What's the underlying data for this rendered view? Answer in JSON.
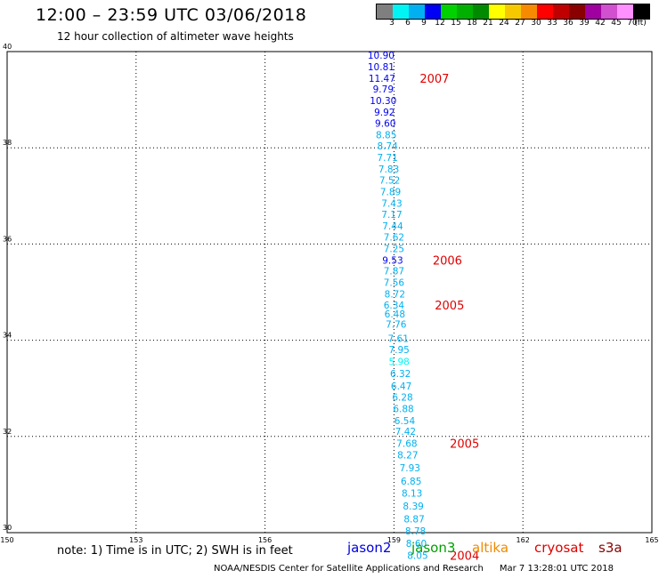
{
  "header": {
    "title": "12:00 – 23:59 UTC 03/06/2018",
    "subtitle": "12 hour collection of altimeter wave heights"
  },
  "colorbar": {
    "colors": [
      "#7f7f7f",
      "#00f4f4",
      "#00b0f0",
      "#0000f4",
      "#00d200",
      "#00b000",
      "#008a00",
      "#ffff00",
      "#f6c800",
      "#f68a00",
      "#ff0000",
      "#c00000",
      "#8a0000",
      "#a000a0",
      "#d050d0",
      "#ff90ff",
      "#000000"
    ],
    "labels": [
      "3",
      "6",
      "9",
      "12",
      "15",
      "18",
      "21",
      "24",
      "27",
      "30",
      "33",
      "36",
      "39",
      "42",
      "45",
      "70",
      "(ft)"
    ]
  },
  "chart_data": {
    "type": "scatter",
    "xlim": [
      150,
      165
    ],
    "ylim": [
      30,
      40
    ],
    "x_ticks": [
      150,
      153,
      156,
      159,
      162,
      165
    ],
    "y_ticks": [
      30,
      32,
      34,
      36,
      38,
      40
    ],
    "x_tick_labels": [
      "150",
      "153",
      "156",
      "159",
      "162",
      "165"
    ],
    "y_tick_labels": [
      "30",
      "32",
      "34",
      "36",
      "38",
      "40"
    ],
    "grid": "dotted",
    "points": [
      {
        "x": 158.7,
        "y": 39.93,
        "label": "10.90",
        "color": "#0000f4"
      },
      {
        "x": 158.7,
        "y": 39.69,
        "label": "10.81",
        "color": "#0000f4"
      },
      {
        "x": 158.72,
        "y": 39.45,
        "label": "11.47",
        "color": "#0000f4"
      },
      {
        "x": 158.75,
        "y": 39.22,
        "label": "9.79",
        "color": "#0000f4"
      },
      {
        "x": 158.75,
        "y": 38.98,
        "label": "10.30",
        "color": "#0000f4"
      },
      {
        "x": 158.78,
        "y": 38.74,
        "label": "9.92",
        "color": "#0000f4"
      },
      {
        "x": 158.8,
        "y": 38.51,
        "label": "9.60",
        "color": "#0000f4"
      },
      {
        "x": 158.82,
        "y": 38.27,
        "label": "8.85",
        "color": "#00b0f0"
      },
      {
        "x": 158.85,
        "y": 38.04,
        "label": "8.74",
        "color": "#00b0f0"
      },
      {
        "x": 158.85,
        "y": 37.8,
        "label": "7.71",
        "color": "#00b0f0"
      },
      {
        "x": 158.88,
        "y": 37.56,
        "label": "7.83",
        "color": "#00b0f0"
      },
      {
        "x": 158.9,
        "y": 37.33,
        "label": "7.52",
        "color": "#00b0f0"
      },
      {
        "x": 158.92,
        "y": 37.09,
        "label": "7.89",
        "color": "#00b0f0"
      },
      {
        "x": 158.95,
        "y": 36.85,
        "label": "7.43",
        "color": "#00b0f0"
      },
      {
        "x": 158.95,
        "y": 36.62,
        "label": "7.17",
        "color": "#00b0f0"
      },
      {
        "x": 158.97,
        "y": 36.38,
        "label": "7.44",
        "color": "#00b0f0"
      },
      {
        "x": 159.0,
        "y": 36.15,
        "label": "7.62",
        "color": "#00b0f0"
      },
      {
        "x": 159.0,
        "y": 35.91,
        "label": "7.25",
        "color": "#00b0f0"
      },
      {
        "x": 158.97,
        "y": 35.67,
        "label": "9.53",
        "color": "#0000f4"
      },
      {
        "x": 159.0,
        "y": 35.44,
        "label": "7.87",
        "color": "#00b0f0"
      },
      {
        "x": 159.0,
        "y": 35.2,
        "label": "7.56",
        "color": "#00b0f0"
      },
      {
        "x": 159.02,
        "y": 34.96,
        "label": "8.72",
        "color": "#00b0f0"
      },
      {
        "x": 159.0,
        "y": 34.73,
        "label": "6.34",
        "color": "#00b0f0"
      },
      {
        "x": 159.02,
        "y": 34.55,
        "label": "6.48",
        "color": "#00b0f0"
      },
      {
        "x": 159.05,
        "y": 34.33,
        "label": "7.76",
        "color": "#00b0f0"
      },
      {
        "x": 159.1,
        "y": 34.04,
        "label": "7.61",
        "color": "#00b0f0"
      },
      {
        "x": 159.12,
        "y": 33.81,
        "label": "7.95",
        "color": "#00b0f0"
      },
      {
        "x": 159.12,
        "y": 33.56,
        "label": "5.98",
        "color": "#00f4f4"
      },
      {
        "x": 159.15,
        "y": 33.31,
        "label": "6.32",
        "color": "#00b0f0"
      },
      {
        "x": 159.17,
        "y": 33.05,
        "label": "6.47",
        "color": "#00b0f0"
      },
      {
        "x": 159.2,
        "y": 32.82,
        "label": "6.28",
        "color": "#00b0f0"
      },
      {
        "x": 159.22,
        "y": 32.58,
        "label": "6.88",
        "color": "#00b0f0"
      },
      {
        "x": 159.25,
        "y": 32.33,
        "label": "6.54",
        "color": "#00b0f0"
      },
      {
        "x": 159.27,
        "y": 32.11,
        "label": "7.42",
        "color": "#00b0f0"
      },
      {
        "x": 159.3,
        "y": 31.86,
        "label": "7.68",
        "color": "#00b0f0"
      },
      {
        "x": 159.32,
        "y": 31.62,
        "label": "8.27",
        "color": "#00b0f0"
      },
      {
        "x": 159.37,
        "y": 31.35,
        "label": "7.93",
        "color": "#00b0f0"
      },
      {
        "x": 159.4,
        "y": 31.07,
        "label": "6.85",
        "color": "#00b0f0"
      },
      {
        "x": 159.42,
        "y": 30.82,
        "label": "8.13",
        "color": "#00b0f0"
      },
      {
        "x": 159.45,
        "y": 30.55,
        "label": "8.39",
        "color": "#00b0f0"
      },
      {
        "x": 159.47,
        "y": 30.29,
        "label": "8.87",
        "color": "#00b0f0"
      },
      {
        "x": 159.5,
        "y": 30.04,
        "label": "8.78",
        "color": "#00b0f0"
      },
      {
        "x": 159.52,
        "y": 29.78,
        "label": "8.60",
        "color": "#00b0f0"
      },
      {
        "x": 159.55,
        "y": 29.53,
        "label": "8.05",
        "color": "#00b0f0"
      }
    ],
    "annotations": [
      {
        "x": 159.6,
        "y": 39.45,
        "label": "2007",
        "color": "#e00000"
      },
      {
        "x": 159.9,
        "y": 35.67,
        "label": "2006",
        "color": "#e00000"
      },
      {
        "x": 159.95,
        "y": 34.73,
        "label": "2005",
        "color": "#e00000"
      },
      {
        "x": 160.3,
        "y": 31.86,
        "label": "2005",
        "color": "#e00000"
      },
      {
        "x": 160.3,
        "y": 29.53,
        "label": "2004",
        "color": "#e00000"
      }
    ]
  },
  "note": "note: 1) Time is in UTC; 2) SWH is in feet",
  "legend": [
    {
      "name": "jason2",
      "color": "#0000e0"
    },
    {
      "name": "jason3",
      "color": "#00a000"
    },
    {
      "name": "altika",
      "color": "#f08a00"
    },
    {
      "name": "cryosat",
      "color": "#e00000"
    },
    {
      "name": "s3a",
      "color": "#8a0000"
    }
  ],
  "footer": {
    "credit": "NOAA/NESDIS Center for Satellite Applications and Research",
    "timestamp": "Mar  7 13:28:01 UTC 2018"
  }
}
